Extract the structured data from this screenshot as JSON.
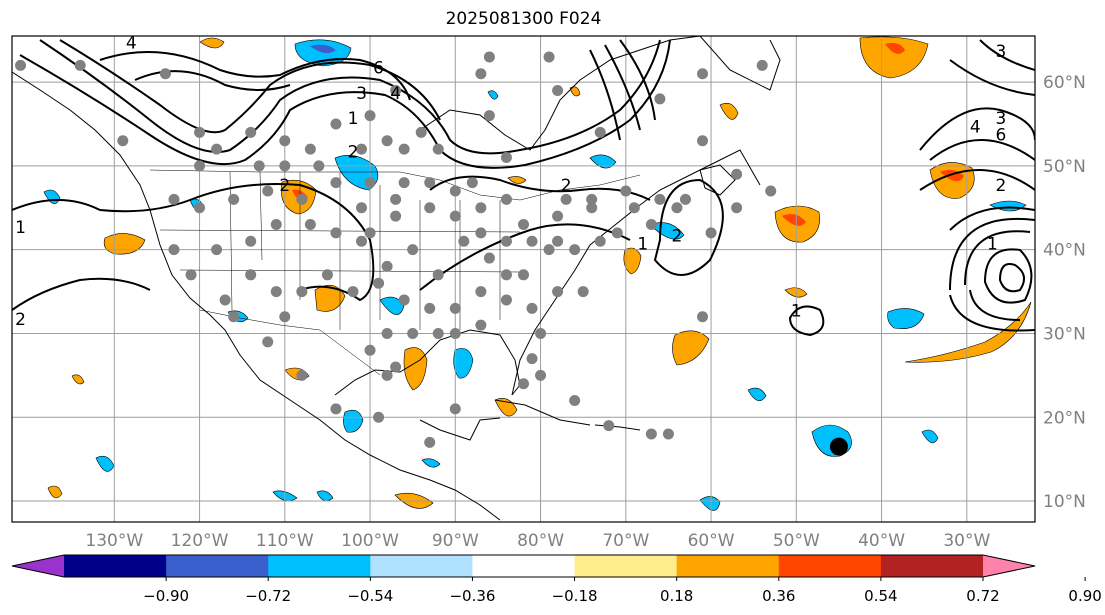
{
  "title": "2025081300 F024",
  "map": {
    "lon_range": [
      -142,
      -22
    ],
    "lat_range": [
      7.5,
      65.5
    ],
    "meridians": [
      -130,
      -120,
      -110,
      -100,
      -90,
      -80,
      -70,
      -60,
      -50,
      -40,
      -30
    ],
    "parallels": [
      10,
      20,
      30,
      40,
      50,
      60
    ],
    "lon_labels": [
      "130°W",
      "120°W",
      "110°W",
      "100°W",
      "90°W",
      "80°W",
      "70°W",
      "60°W",
      "50°W",
      "40°W",
      "30°W"
    ],
    "lat_labels": [
      "10°N",
      "20°N",
      "30°N",
      "40°N",
      "50°N",
      "60°N"
    ],
    "label_color": "#808080",
    "grid_color": "#9e9e9e"
  },
  "colorbar": {
    "colors": [
      "#9a32cd",
      "#00008b",
      "#3a5fcd",
      "#00bfff",
      "#b0e2ff",
      "#ffffff",
      "#ffec8b",
      "#ffa500",
      "#ff4500",
      "#b22222",
      "#ff82ab"
    ],
    "tick_labels": [
      "−0.90",
      "−0.72",
      "−0.54",
      "−0.36",
      "−0.18",
      "0.18",
      "0.36",
      "0.54",
      "0.72",
      "0.90"
    ]
  },
  "contour_labels": [
    {
      "text": "4",
      "lon": -128,
      "lat": 64
    },
    {
      "text": "6",
      "lon": -99,
      "lat": 61
    },
    {
      "text": "3",
      "lon": -101,
      "lat": 58
    },
    {
      "text": "4",
      "lon": -97,
      "lat": 58
    },
    {
      "text": "1",
      "lon": -102,
      "lat": 55
    },
    {
      "text": "2",
      "lon": -102,
      "lat": 51
    },
    {
      "text": "1",
      "lon": -141,
      "lat": 42
    },
    {
      "text": "2",
      "lon": -141,
      "lat": 31
    },
    {
      "text": "2",
      "lon": -110,
      "lat": 47
    },
    {
      "text": "2",
      "lon": -77,
      "lat": 47
    },
    {
      "text": "1",
      "lon": -68,
      "lat": 40
    },
    {
      "text": "2",
      "lon": -64,
      "lat": 41
    },
    {
      "text": "1",
      "lon": -50,
      "lat": 32
    },
    {
      "text": "3",
      "lon": -26,
      "lat": 63
    },
    {
      "text": "3",
      "lon": -26,
      "lat": 55
    },
    {
      "text": "6",
      "lon": -26,
      "lat": 53
    },
    {
      "text": "4",
      "lon": -29,
      "lat": 54
    },
    {
      "text": "1",
      "lon": -27,
      "lat": 40
    },
    {
      "text": "2",
      "lon": -26,
      "lat": 47
    }
  ],
  "stations": [
    [
      -141,
      62
    ],
    [
      -134,
      62
    ],
    [
      -129,
      53
    ],
    [
      -124,
      61
    ],
    [
      -120,
      54
    ],
    [
      -114,
      54
    ],
    [
      -110,
      53
    ],
    [
      -107,
      52
    ],
    [
      -101,
      52
    ],
    [
      -98,
      53
    ],
    [
      -97,
      59
    ],
    [
      -94,
      54
    ],
    [
      -86,
      63
    ],
    [
      -86,
      56
    ],
    [
      -79,
      63
    ],
    [
      -73,
      54
    ],
    [
      -84,
      51
    ],
    [
      -104,
      48
    ],
    [
      -100,
      48
    ],
    [
      -96,
      48
    ],
    [
      -93,
      48
    ],
    [
      -90,
      47
    ],
    [
      -87,
      45
    ],
    [
      -82,
      43
    ],
    [
      -78,
      44
    ],
    [
      -74,
      46
    ],
    [
      -70,
      47
    ],
    [
      -67,
      43
    ],
    [
      -64,
      45
    ],
    [
      -60,
      42
    ],
    [
      -57,
      49
    ],
    [
      -53,
      47
    ],
    [
      -54,
      62
    ],
    [
      -61,
      53
    ],
    [
      -61,
      61
    ],
    [
      -66,
      58
    ],
    [
      -78,
      59
    ],
    [
      -87,
      61
    ],
    [
      -100,
      42
    ],
    [
      -98,
      38
    ],
    [
      -95,
      40
    ],
    [
      -92,
      37
    ],
    [
      -89,
      41
    ],
    [
      -86,
      39
    ],
    [
      -82,
      37
    ],
    [
      -79,
      40
    ],
    [
      -76,
      40
    ],
    [
      -73,
      41
    ],
    [
      -71,
      42
    ],
    [
      -75,
      35
    ],
    [
      -78,
      35
    ],
    [
      -81,
      33
    ],
    [
      -84,
      34
    ],
    [
      -87,
      31
    ],
    [
      -90,
      30
    ],
    [
      -93,
      33
    ],
    [
      -96,
      34
    ],
    [
      -99,
      36
    ],
    [
      -102,
      35
    ],
    [
      -105,
      37
    ],
    [
      -108,
      35
    ],
    [
      -111,
      35
    ],
    [
      -114,
      37
    ],
    [
      -117,
      34
    ],
    [
      -121,
      37
    ],
    [
      -123,
      40
    ],
    [
      -118,
      40
    ],
    [
      -114,
      41
    ],
    [
      -111,
      43
    ],
    [
      -107,
      43
    ],
    [
      -104,
      42
    ],
    [
      -101,
      45
    ],
    [
      -97,
      44
    ],
    [
      -120,
      45
    ],
    [
      -123,
      46
    ],
    [
      -116,
      46
    ],
    [
      -112,
      47
    ],
    [
      -108,
      46
    ],
    [
      -98,
      30
    ],
    [
      -100,
      28
    ],
    [
      -97,
      26
    ],
    [
      -95,
      30
    ],
    [
      -92,
      30
    ],
    [
      -90,
      33
    ],
    [
      -87,
      35
    ],
    [
      -84,
      37
    ],
    [
      -80,
      30
    ],
    [
      -81,
      27
    ],
    [
      -82,
      24
    ],
    [
      -80,
      25
    ],
    [
      -76,
      22
    ],
    [
      -72,
      19
    ],
    [
      -67,
      18
    ],
    [
      -65,
      18
    ],
    [
      -93,
      17
    ],
    [
      -90,
      21
    ],
    [
      -99,
      20
    ],
    [
      -104,
      21
    ],
    [
      -108,
      25
    ],
    [
      -112,
      29
    ],
    [
      -116,
      32
    ],
    [
      -98,
      25
    ],
    [
      -110,
      32
    ],
    [
      -120,
      50
    ],
    [
      -118,
      52
    ],
    [
      -113,
      50
    ],
    [
      -110,
      50
    ],
    [
      -106,
      50
    ],
    [
      -104,
      55
    ],
    [
      -100,
      56
    ],
    [
      -96,
      52
    ],
    [
      -92,
      52
    ],
    [
      -88,
      48
    ],
    [
      -84,
      46
    ],
    [
      -77,
      46
    ],
    [
      -74,
      45
    ],
    [
      -69,
      45
    ],
    [
      -66,
      46
    ],
    [
      -63,
      46
    ],
    [
      -57,
      45
    ],
    [
      -61,
      32
    ],
    [
      -78,
      41
    ],
    [
      -81,
      41
    ],
    [
      -84,
      41
    ],
    [
      -87,
      42
    ],
    [
      -90,
      44
    ],
    [
      -93,
      45
    ],
    [
      -97,
      46
    ],
    [
      -101,
      41
    ]
  ],
  "big_dot": {
    "lon": -45,
    "lat": 16.5
  }
}
